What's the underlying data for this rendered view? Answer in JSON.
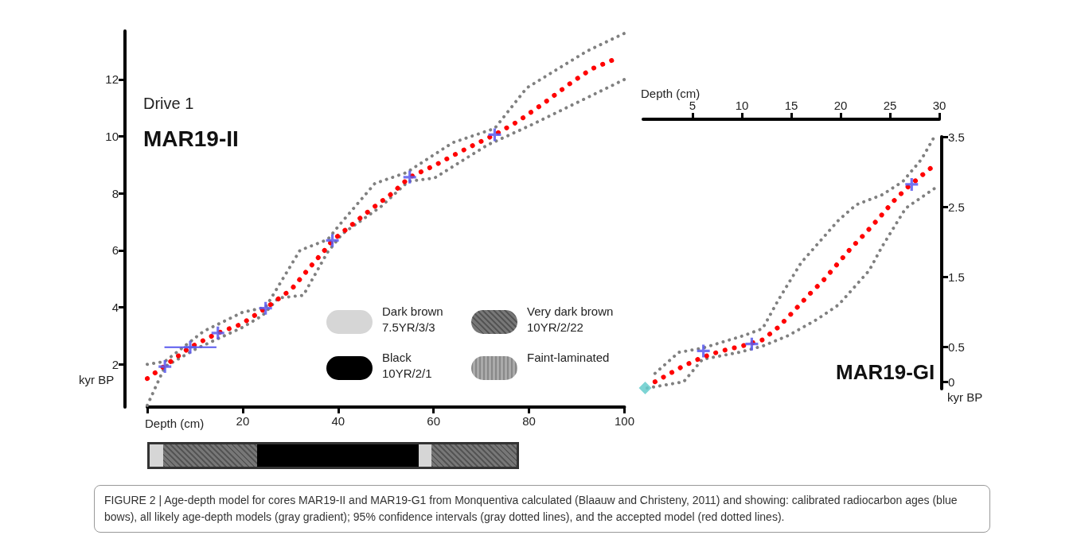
{
  "chart_data": [
    {
      "type": "line",
      "title": "MAR19-II",
      "subtitle": "Drive 1",
      "xlabel": "Depth (cm)",
      "ylabel": "kyr BP",
      "xlim": [
        0,
        100
      ],
      "xticks": [
        {
          "value": 0,
          "label": null
        },
        20,
        40,
        60,
        80,
        100
      ],
      "ylim": [
        0.5,
        13.7
      ],
      "yticks": [
        2,
        4,
        6,
        8,
        10,
        12
      ],
      "annotations": [
        "Dark brown 7.5YR/3/3",
        "Very dark brown 10YR/2/22",
        "Black 10YR/2/1",
        "Faint-laminated",
        "FIGURE 2 | Age-depth model for cores MAR19-II and MAR19-G1 from Monquentiva calculated (Blaauw and Christeny, 2011) and showing: calibrated radiocarbon ages (blue bows), all likely age-depth models (gray gradient); 95% confidence intervals (gray dotted lines), and the accepted model (red dotted lines)."
      ],
      "series": [
        {
          "color": "#808080",
          "line_style": "dotted",
          "marker": "none",
          "x": [
            0,
            3.7,
            11.8,
            20,
            24.8,
            32,
            37.8,
            40.2,
            47.7,
            54.3,
            64,
            72.8,
            79.5,
            92.2,
            100
          ],
          "values": [
            2.0,
            2.1,
            3.16,
            3.83,
            4.0,
            6.0,
            6.38,
            6.88,
            8.35,
            8.73,
            9.78,
            10.28,
            11.7,
            13.0,
            13.62
          ]
        },
        {
          "color": "#808080",
          "line_style": "dotted",
          "marker": "none",
          "x": [
            0,
            3.7,
            10.3,
            20,
            24.2,
            27.5,
            32.7,
            37.8,
            40.8,
            49,
            54.7,
            60.2,
            71.3,
            80.3,
            100
          ],
          "values": [
            0.56,
            1.92,
            2.55,
            3.3,
            3.72,
            4.33,
            4.42,
            5.94,
            6.57,
            7.54,
            8.42,
            8.54,
            9.7,
            10.39,
            12.0
          ]
        },
        {
          "color": "#ff0000",
          "line_style": "dotted",
          "marker": "none",
          "x": [
            0,
            5.5,
            9,
            14.8,
            19.7,
            24.8,
            30.2,
            34.2,
            37.5,
            38.8,
            42.3,
            47.2,
            51.3,
            55,
            60.2,
            65.8,
            72.8,
            77.7,
            83.3,
            88.8,
            93,
            98.5
          ],
          "values": [
            1.5,
            2.17,
            2.6,
            3.1,
            3.41,
            3.97,
            4.63,
            5.43,
            6.07,
            6.35,
            6.82,
            7.48,
            8.0,
            8.57,
            8.98,
            9.48,
            10.06,
            10.53,
            11.19,
            11.88,
            12.36,
            12.75
          ]
        },
        {
          "type": "scatter",
          "color": "#5a5aee",
          "marker": "cross",
          "x": [
            3.7,
            9,
            14.8,
            24.8,
            38.8,
            55,
            72.8
          ],
          "values": [
            1.92,
            2.6,
            3.1,
            3.97,
            6.35,
            8.57,
            10.06
          ],
          "xerrors": [
            null,
            [
              3.6,
              14.5
            ],
            null,
            null,
            null,
            null,
            null
          ]
        }
      ]
    },
    {
      "type": "line",
      "title": "MAR19-GI",
      "xlabel": "Depth (cm)",
      "ylabel": "kyr BP",
      "xlim": [
        0,
        30
      ],
      "xticks": [
        5,
        10,
        15,
        20,
        25,
        30
      ],
      "ylim": [
        -0.1,
        3.5
      ],
      "yticks": [
        0,
        0.5,
        1.5,
        2.5,
        3.5
      ],
      "series": [
        {
          "color": "#808080",
          "line_style": "dotted",
          "marker": "none",
          "x": [
            1.2,
            3.6,
            6.0,
            10.2,
            12.1,
            13.7,
            16.0,
            19.8,
            21.6,
            24.2,
            26.3,
            28.2,
            29.5
          ],
          "values": [
            0.12,
            0.42,
            0.48,
            0.66,
            0.76,
            1.17,
            1.7,
            2.31,
            2.53,
            2.67,
            2.86,
            3.18,
            3.5
          ]
        },
        {
          "color": "#808080",
          "line_style": "dotted",
          "marker": "none",
          "x": [
            0.4,
            4.1,
            6.0,
            9.7,
            12.1,
            14.7,
            17.6,
            19.8,
            22.9,
            24.2,
            26.6,
            29.5
          ],
          "values": [
            -0.09,
            0.0,
            0.32,
            0.42,
            0.51,
            0.66,
            0.89,
            1.1,
            1.59,
            1.93,
            2.48,
            2.76
          ]
        },
        {
          "color": "#ff0000",
          "line_style": "dotted",
          "marker": "none",
          "x": [
            1.2,
            2.1,
            4.0,
            6.0,
            7.9,
            10.0,
            12.1,
            13.7,
            15.2,
            16.7,
            18.2,
            19.6,
            21.0,
            22.5,
            23.9,
            25.3,
            26.8,
            28.5,
            29.3
          ],
          "values": [
            0.0,
            0.07,
            0.22,
            0.35,
            0.44,
            0.51,
            0.6,
            0.78,
            1.0,
            1.23,
            1.44,
            1.67,
            1.9,
            2.12,
            2.34,
            2.57,
            2.78,
            2.98,
            3.07
          ]
        },
        {
          "type": "scatter",
          "color": "#5a5aee",
          "marker": "cross",
          "x": [
            6.1,
            11.0,
            27.2
          ],
          "values": [
            0.44,
            0.54,
            2.82
          ]
        },
        {
          "type": "scatter",
          "color": "#66cccc",
          "marker": "diamond",
          "x": [
            0.2
          ],
          "values": [
            -0.09
          ]
        }
      ]
    }
  ]
}
